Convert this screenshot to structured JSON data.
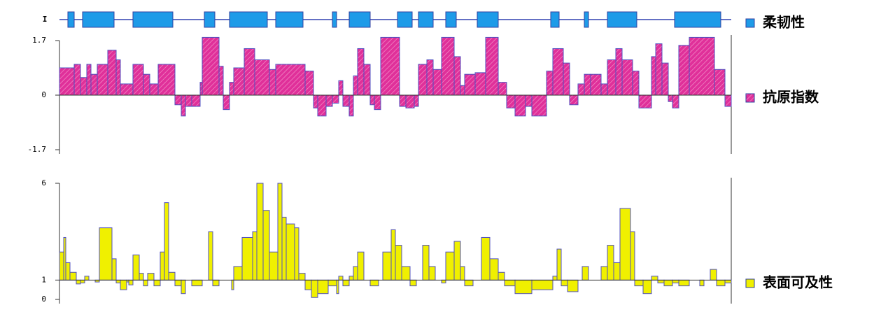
{
  "chart_data": [
    {
      "type": "regions",
      "ylabel": "I",
      "xlim": [
        0,
        320
      ],
      "color": "#1e9be8",
      "series": [
        {
          "name": "柔韧性",
          "color": "#1e9be8",
          "regions": [
            [
              4,
              7
            ],
            [
              11,
              26
            ],
            [
              35,
              54
            ],
            [
              69,
              74
            ],
            [
              81,
              99
            ],
            [
              103,
              116
            ],
            [
              130,
              132
            ],
            [
              138,
              148
            ],
            [
              161,
              168
            ],
            [
              171,
              178
            ],
            [
              184,
              189
            ],
            [
              199,
              209
            ],
            [
              234,
              238
            ],
            [
              250,
              252
            ],
            [
              261,
              275
            ],
            [
              293,
              315
            ]
          ]
        }
      ]
    },
    {
      "type": "step",
      "xlim": [
        0,
        320
      ],
      "ylim": [
        -1.7,
        1.7
      ],
      "yticks": [
        1.7,
        0,
        -1.7
      ],
      "baseline": 0,
      "series": [
        {
          "name": "抗原指数",
          "color": "#e0309a",
          "x": [
            0,
            7,
            10,
            13,
            15,
            18,
            23,
            27,
            29,
            35,
            40,
            43,
            47,
            55,
            58,
            60,
            63,
            67,
            68,
            76,
            78,
            81,
            83,
            88,
            93,
            100,
            103,
            117,
            121,
            123,
            127,
            130,
            133,
            135,
            138,
            140,
            142,
            145,
            148,
            150,
            153,
            162,
            165,
            169,
            171,
            175,
            178,
            182,
            188,
            191,
            193,
            198,
            203,
            209,
            213,
            217,
            222,
            225,
            232,
            235,
            240,
            243,
            247,
            250,
            253,
            258,
            261,
            265,
            268,
            273,
            276,
            282,
            284,
            287,
            290,
            292,
            295,
            300,
            312,
            317
          ],
          "values": [
            0.85,
            0.96,
            0.55,
            0.96,
            0.65,
            0.96,
            1.4,
            1.1,
            0.35,
            0.96,
            0.65,
            0.35,
            0.96,
            -0.3,
            -0.65,
            -0.35,
            -0.35,
            0.4,
            1.8,
            0.9,
            -0.45,
            0.4,
            0.85,
            1.45,
            1.1,
            0.8,
            0.96,
            0.75,
            -0.4,
            -0.65,
            -0.35,
            -0.25,
            0.45,
            -0.35,
            -0.65,
            0.6,
            1.45,
            0.96,
            -0.3,
            -0.45,
            1.8,
            -0.35,
            -0.4,
            -0.35,
            0.96,
            1.1,
            0.8,
            1.8,
            1.2,
            0.3,
            0.65,
            0.7,
            1.8,
            0.4,
            -0.4,
            -0.65,
            -0.35,
            -0.65,
            0.75,
            1.45,
            1.0,
            -0.3,
            0.35,
            0.65,
            0.65,
            0.35,
            1.1,
            1.45,
            1.1,
            0.75,
            -0.4,
            1.2,
            1.6,
            1.0,
            -0.2,
            -0.4,
            1.55,
            1.8,
            0.8,
            -0.35
          ]
        }
      ]
    },
    {
      "type": "step",
      "xlim": [
        0,
        320
      ],
      "ylim": [
        0,
        6
      ],
      "yticks": [
        6,
        1,
        0
      ],
      "baseline": 1,
      "series": [
        {
          "name": "表面可及性",
          "color": "#f0f000",
          "x": [
            0,
            2,
            3,
            5,
            8,
            10,
            12,
            14,
            17,
            19,
            25,
            27,
            29,
            32,
            33,
            35,
            38,
            40,
            42,
            45,
            48,
            50,
            52,
            55,
            58,
            60,
            63,
            68,
            71,
            73,
            76,
            82,
            83,
            87,
            92,
            94,
            97,
            100,
            104,
            106,
            108,
            112,
            114,
            117,
            120,
            123,
            128,
            132,
            133,
            135,
            138,
            140,
            142,
            145,
            148,
            152,
            154,
            158,
            160,
            163,
            167,
            170,
            173,
            176,
            179,
            182,
            184,
            188,
            191,
            193,
            197,
            201,
            205,
            209,
            212,
            217,
            225,
            235,
            237,
            239,
            242,
            247,
            249,
            252,
            255,
            258,
            261,
            264,
            267,
            272,
            274,
            278,
            282,
            285,
            288,
            292,
            295,
            300,
            305,
            307,
            310,
            313,
            317
          ],
          "values": [
            2.45,
            3.2,
            1.9,
            1.4,
            0.8,
            0.85,
            1.2,
            1.0,
            0.9,
            3.7,
            2.1,
            0.85,
            0.5,
            0.9,
            0.75,
            2.3,
            1.35,
            0.7,
            1.35,
            0.7,
            2.45,
            5.0,
            1.4,
            0.7,
            0.3,
            1.0,
            0.7,
            1.0,
            3.5,
            0.7,
            1.0,
            0.5,
            1.7,
            3.2,
            3.5,
            6.0,
            4.6,
            2.45,
            6.0,
            4.25,
            3.9,
            3.7,
            1.35,
            0.5,
            0.1,
            0.3,
            0.7,
            0.3,
            1.2,
            0.7,
            1.2,
            1.7,
            2.45,
            1.0,
            0.7,
            1.0,
            2.45,
            3.6,
            2.8,
            1.7,
            0.7,
            1.0,
            2.8,
            1.7,
            1.0,
            0.85,
            2.45,
            3.0,
            1.7,
            0.7,
            1.0,
            3.2,
            2.1,
            1.4,
            0.7,
            0.3,
            0.5,
            1.2,
            2.6,
            0.7,
            0.4,
            1.0,
            1.7,
            1.0,
            1.0,
            1.7,
            2.8,
            1.9,
            4.7,
            3.5,
            0.7,
            0.3,
            1.2,
            0.85,
            0.7,
            0.85,
            0.7,
            1.0,
            0.7,
            1.0,
            1.55,
            0.7,
            0.85
          ]
        }
      ]
    }
  ]
}
